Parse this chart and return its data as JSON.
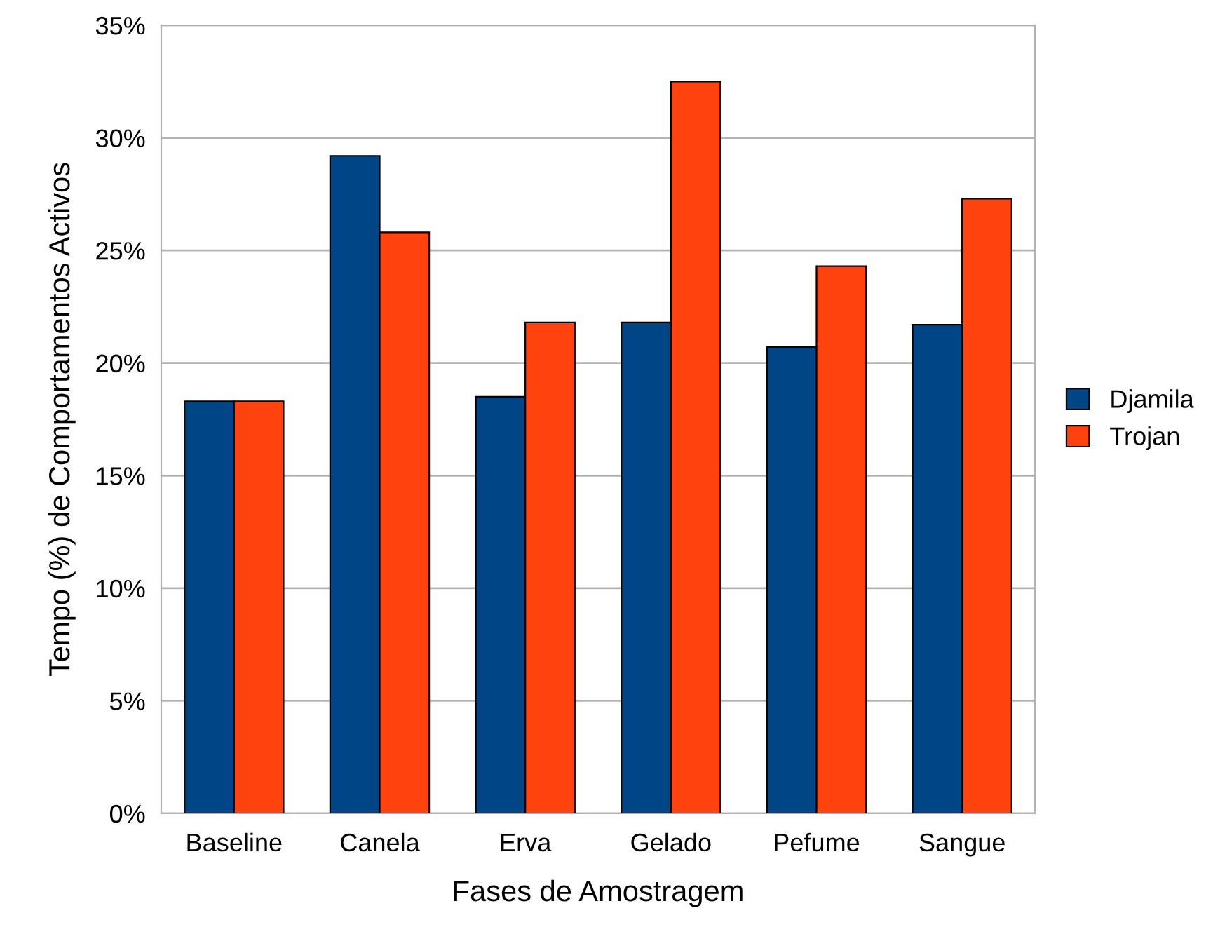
{
  "chart_data": {
    "type": "bar",
    "xlabel": "Fases de Amostragem",
    "ylabel": "Tempo (%) de Comportamentos Activos",
    "categories": [
      "Baseline",
      "Canela",
      "Erva",
      "Gelado",
      "Pefume",
      "Sangue"
    ],
    "series": [
      {
        "name": "Djamila",
        "color": "#004586",
        "values": [
          18.3,
          29.2,
          18.5,
          21.8,
          20.7,
          21.7
        ]
      },
      {
        "name": "Trojan",
        "color": "#ff420e",
        "values": [
          18.3,
          25.8,
          21.8,
          32.5,
          24.3,
          27.3
        ]
      }
    ],
    "ylim": [
      0,
      35
    ],
    "yticks": [
      {
        "value": 0,
        "label": "0%"
      },
      {
        "value": 5,
        "label": "5%"
      },
      {
        "value": 10,
        "label": "10%"
      },
      {
        "value": 15,
        "label": "15%"
      },
      {
        "value": 20,
        "label": "20%"
      },
      {
        "value": 25,
        "label": "25%"
      },
      {
        "value": 30,
        "label": "30%"
      },
      {
        "value": 35,
        "label": "35%"
      }
    ],
    "grid": "y",
    "legend": "right"
  }
}
